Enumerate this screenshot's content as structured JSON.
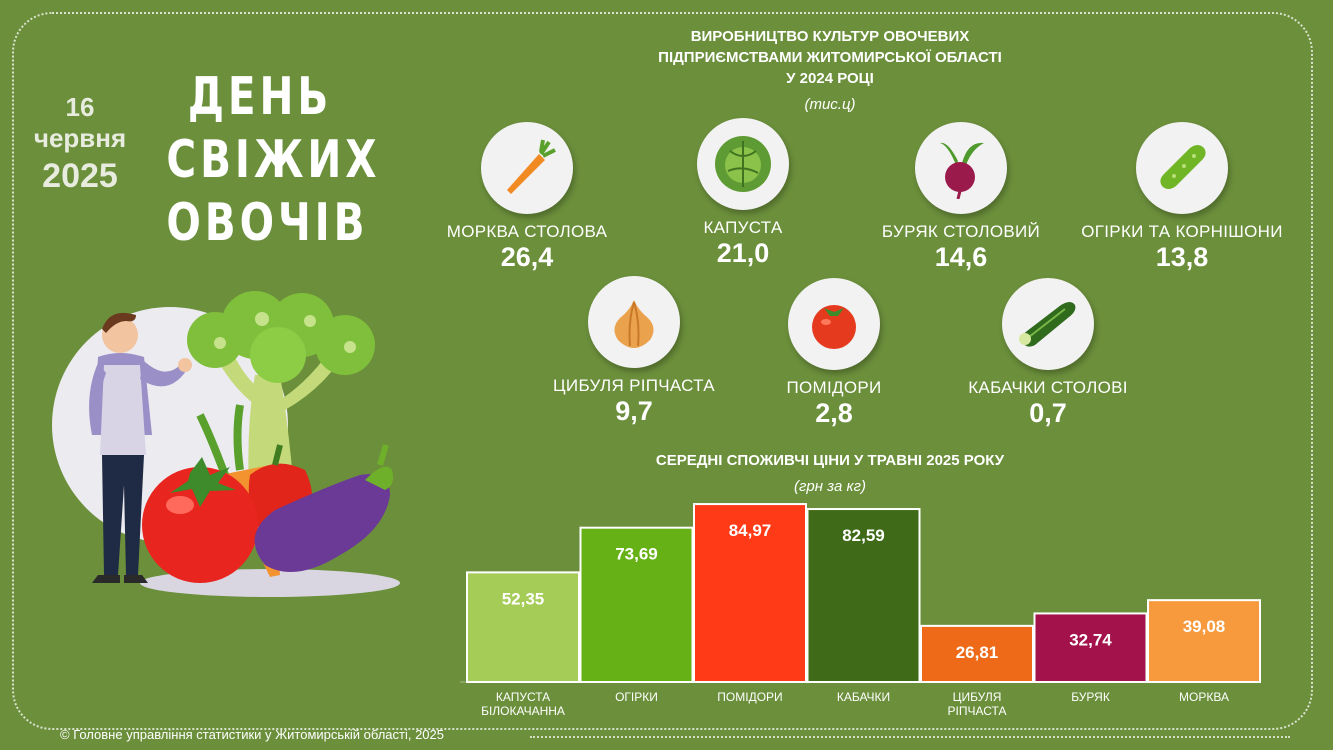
{
  "date": {
    "day": "16",
    "month": "червня",
    "year": "2025"
  },
  "title": {
    "line1": "ДЕНЬ",
    "line2": "СВІЖИХ",
    "line3": "ОВОЧІВ"
  },
  "production": {
    "title_line1": "ВИРОБНИЦТВО КУЛЬТУР ОВОЧЕВИХ",
    "title_line2": "ПІДПРИЄМСТВАМИ  ЖИТОМИРСЬКОЇ ОБЛАСТІ",
    "title_line3": "У  2024 РОЦІ",
    "unit": "(тис.ц)",
    "items": [
      {
        "name": "МОРКВА СТОЛОВА",
        "value": "26,4",
        "icon": "carrot-icon"
      },
      {
        "name": "КАПУСТА",
        "value": "21,0",
        "icon": "cabbage-icon"
      },
      {
        "name": "БУРЯК СТОЛОВИЙ",
        "value": "14,6",
        "icon": "beet-icon"
      },
      {
        "name": "ОГІРКИ ТА КОРНІШОНИ",
        "value": "13,8",
        "icon": "cucumber-icon"
      },
      {
        "name": "ЦИБУЛЯ РІПЧАСТА",
        "value": "9,7",
        "icon": "onion-icon"
      },
      {
        "name": "ПОМІДОРИ",
        "value": "2,8",
        "icon": "tomato-icon"
      },
      {
        "name": "КАБАЧКИ СТОЛОВІ",
        "value": "0,7",
        "icon": "zucchini-icon"
      }
    ]
  },
  "prices": {
    "title": "СЕРЕДНІ СПОЖИВЧІ ЦІНИ У ТРАВНІ 2025 РОКУ",
    "unit": "(грн за кг)"
  },
  "chart_data": {
    "type": "bar",
    "categories": [
      "КАПУСТА БІЛОКАЧАННА",
      "ОГІРКИ",
      "ПОМІДОРИ",
      "КАБАЧКИ",
      "ЦИБУЛЯ РІПЧАСТА",
      "БУРЯК",
      "МОРКВА"
    ],
    "category_lines": [
      [
        "КАПУСТА",
        "БІЛОКАЧАННА"
      ],
      [
        "ОГІРКИ"
      ],
      [
        "ПОМІДОРИ"
      ],
      [
        "КАБАЧКИ"
      ],
      [
        "ЦИБУЛЯ",
        "РІПЧАСТА"
      ],
      [
        "БУРЯК"
      ],
      [
        "МОРКВА"
      ]
    ],
    "values": [
      52.35,
      73.69,
      84.97,
      82.59,
      26.81,
      32.74,
      39.08
    ],
    "value_labels": [
      "52,35",
      "73,69",
      "84,97",
      "82,59",
      "26,81",
      "32,74",
      "39,08"
    ],
    "colors": [
      "#a5cc57",
      "#66b216",
      "#ff3a17",
      "#3f6b18",
      "#ee6a18",
      "#a3124b",
      "#f79a3e"
    ],
    "title": "СЕРЕДНІ СПОЖИВЧІ ЦІНИ У ТРАВНІ 2025 РОКУ",
    "ylim": [
      0,
      85
    ],
    "grid": false,
    "legend": "none"
  },
  "footer": "© Головне управління статистики у Житомирській області, 2025"
}
